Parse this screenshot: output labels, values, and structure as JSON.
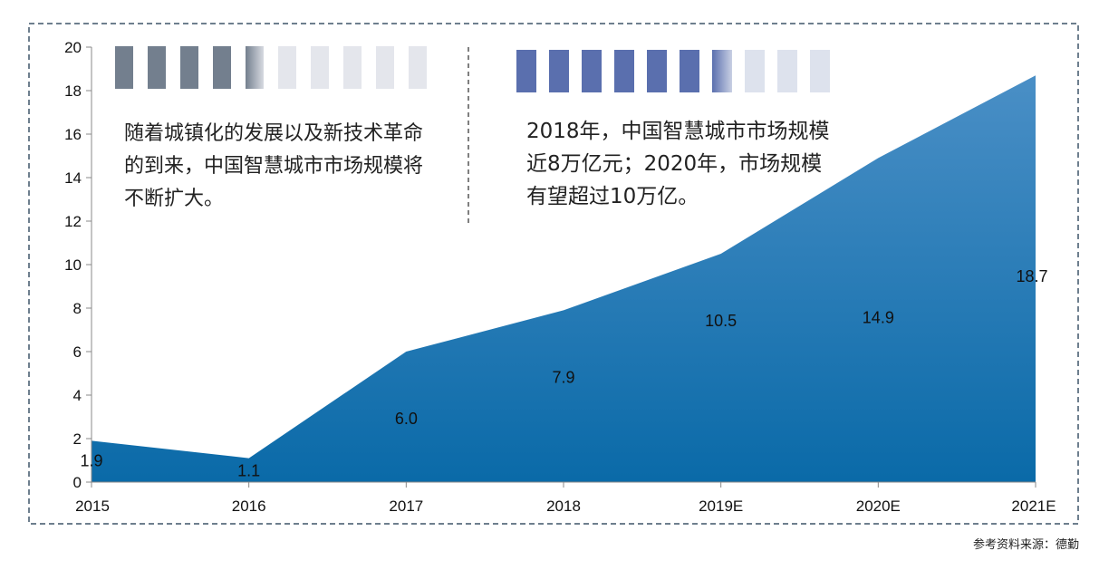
{
  "chart_data": {
    "type": "area",
    "categories": [
      "2015",
      "2016",
      "2017",
      "2018",
      "2019E",
      "2020E",
      "2021E"
    ],
    "values": [
      1.9,
      1.1,
      6.0,
      7.9,
      10.5,
      14.9,
      18.7
    ],
    "value_labels": [
      "1.9",
      "1.1",
      "6.0",
      "7.9",
      "10.5",
      "14.9",
      "18.7"
    ],
    "y_ticks": [
      "0",
      "2",
      "4",
      "6",
      "8",
      "10",
      "12",
      "14",
      "16",
      "18",
      "20"
    ],
    "ylim": [
      0,
      20
    ],
    "grid": false,
    "colors": {
      "area_top": "#4a8fc6",
      "area_bottom": "#0a6aa8"
    }
  },
  "notes": {
    "left": "随着城镇化的发展以及新技术革命的到来，中国智慧城市市场规模将不断扩大。",
    "right": "2018年，中国智慧城市市场规模近8万亿元；2020年，市场规模有望超过10万亿。"
  },
  "source": "参考资料来源：德勤",
  "decor": {
    "left_blocks": {
      "filled": "#737f8e",
      "empty": "#e4e6ec"
    },
    "right_blocks": {
      "filled": "#5a6fae",
      "empty": "#dde2ed"
    },
    "frame_color": "#6e7f8e"
  }
}
